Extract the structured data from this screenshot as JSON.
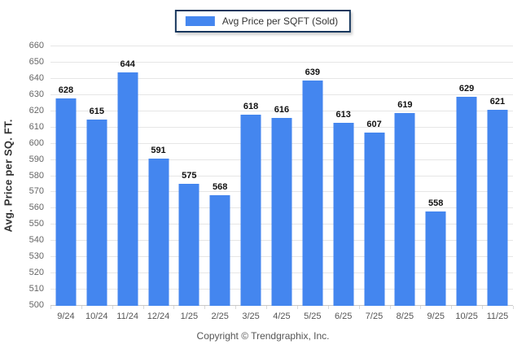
{
  "legend": {
    "label": "Avg Price per SQFT (Sold)",
    "swatch_color": "#4486ef"
  },
  "y_axis_title": "Avg. Price per SQ. FT.",
  "footer": "Copyright © Trendgraphix, Inc.",
  "chart_data": {
    "type": "bar",
    "title": "",
    "categories": [
      "9/24",
      "10/24",
      "11/24",
      "12/24",
      "1/25",
      "2/25",
      "3/25",
      "4/25",
      "5/25",
      "6/25",
      "7/25",
      "8/25",
      "9/25",
      "10/25",
      "11/25"
    ],
    "values": [
      628,
      615,
      644,
      591,
      575,
      568,
      618,
      616,
      639,
      613,
      607,
      619,
      558,
      629,
      621
    ],
    "xlabel": "",
    "ylabel": "Avg. Price per SQ. FT.",
    "ylim": [
      500,
      660
    ],
    "ytick_step": 10,
    "bar_color": "#4486ef",
    "grid": true,
    "legend_entries": [
      "Avg Price per SQFT (Sold)"
    ],
    "legend_position": "top-center",
    "value_labels": "above-bars"
  }
}
